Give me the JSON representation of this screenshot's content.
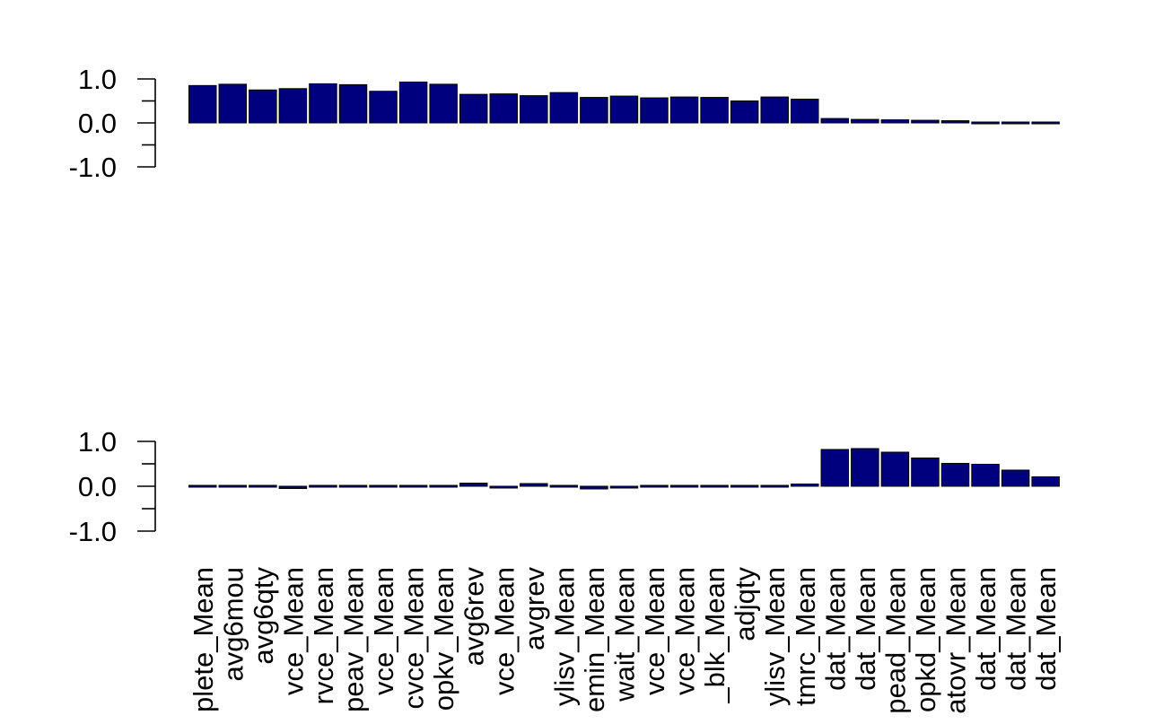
{
  "chart_data": [
    {
      "type": "bar",
      "panel": "top",
      "ylim": [
        -1.0,
        1.0
      ],
      "ytick_labels": [
        "1.0",
        "0.0",
        "-1.0"
      ],
      "ytick_values": [
        1.0,
        0.0,
        -1.0
      ],
      "minor_ticks": [
        0.5,
        -0.5
      ],
      "bar_color": "#00007f",
      "values": [
        0.85,
        0.88,
        0.75,
        0.78,
        0.89,
        0.87,
        0.72,
        0.93,
        0.88,
        0.65,
        0.66,
        0.62,
        0.69,
        0.58,
        0.61,
        0.57,
        0.59,
        0.58,
        0.5,
        0.59,
        0.54,
        0.1,
        0.08,
        0.07,
        0.06,
        0.05,
        0.04,
        0.04,
        0.03
      ]
    },
    {
      "type": "bar",
      "panel": "bottom",
      "ylim": [
        -1.0,
        1.0
      ],
      "ytick_labels": [
        "1.0",
        "0.0",
        "-1.0"
      ],
      "ytick_values": [
        1.0,
        0.0,
        -1.0
      ],
      "minor_ticks": [
        0.5,
        -0.5
      ],
      "bar_color": "#00007f",
      "categories": [
        "plete_Mean",
        "avg6mou",
        "avg6qty",
        "vce_Mean",
        "rvce_Mean",
        "peav_Mean",
        "vce_Mean",
        "cvce_Mean",
        "opkv_Mean",
        "avg6rev",
        "vce_Mean",
        "avgrev",
        "ylisv_Mean",
        "emin_Mean",
        "wait_Mean",
        "vce_Mean",
        "vce_Mean",
        "_blk_Mean",
        "adjqty",
        "ylisv_Mean",
        "tmrc_Mean",
        "dat_Mean",
        "dat_Mean",
        "pead_Mean",
        "opkd_Mean",
        "atovr_Mean",
        "dat_Mean",
        "dat_Mean",
        "dat_Mean"
      ],
      "values": [
        0.01,
        0.03,
        -0.01,
        -0.05,
        0.01,
        0.01,
        -0.02,
        0.01,
        0.01,
        0.07,
        -0.04,
        0.06,
        0.01,
        -0.06,
        -0.04,
        -0.03,
        -0.02,
        0.01,
        -0.02,
        0.01,
        0.05,
        0.82,
        0.84,
        0.76,
        0.63,
        0.51,
        0.49,
        0.36,
        0.21
      ]
    }
  ]
}
